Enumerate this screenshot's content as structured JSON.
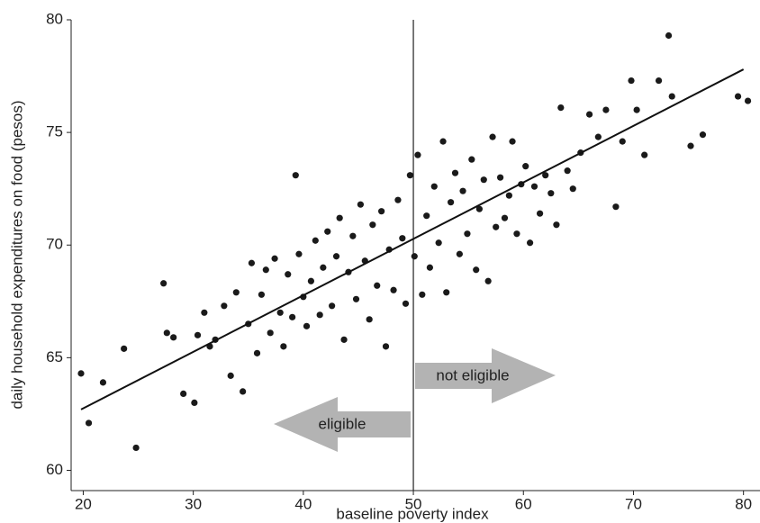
{
  "chart_data": {
    "type": "scatter",
    "x_label": "baseline poverty index",
    "y_label": "daily household expenditures on food (pesos)",
    "annotations": [
      "not eligible",
      "eligible"
    ],
    "threshold": 50,
    "fit_line": {
      "x": [
        19.8,
        80
      ],
      "y": [
        62.7,
        77.8
      ]
    },
    "color": "#1a1a1a",
    "x": [
      19.8,
      20.5,
      21.8,
      23.7,
      24.8,
      27.3,
      27.6,
      28.2,
      29.1,
      30.1,
      30.4,
      31.0,
      31.5,
      32.0,
      32.8,
      33.4,
      33.9,
      34.5,
      35.0,
      35.3,
      35.8,
      36.2,
      36.6,
      37.0,
      37.4,
      37.9,
      38.2,
      38.6,
      39.0,
      39.3,
      39.6,
      40.0,
      40.3,
      40.7,
      41.1,
      41.5,
      41.8,
      42.2,
      42.6,
      43.0,
      43.3,
      43.7,
      44.1,
      44.5,
      44.8,
      45.2,
      45.6,
      46.0,
      46.3,
      46.7,
      47.1,
      47.5,
      47.8,
      48.2,
      48.6,
      49.0,
      49.3,
      49.7,
      50.1,
      50.4,
      50.8,
      51.2,
      51.5,
      51.9,
      52.3,
      52.7,
      53.0,
      53.4,
      53.8,
      54.2,
      54.5,
      54.9,
      55.3,
      55.7,
      56.0,
      56.4,
      56.8,
      57.2,
      57.5,
      57.9,
      58.3,
      58.7,
      59.0,
      59.4,
      59.8,
      60.2,
      60.6,
      61.0,
      61.5,
      62.0,
      62.5,
      63.0,
      63.4,
      64.0,
      64.5,
      65.2,
      66.0,
      66.8,
      67.5,
      68.4,
      69.0,
      69.8,
      70.3,
      71.0,
      72.3,
      73.2,
      73.5,
      75.2,
      76.3,
      79.5,
      80.4
    ],
    "values": [
      64.3,
      62.1,
      63.9,
      65.4,
      61.0,
      68.3,
      66.1,
      65.9,
      63.4,
      63.0,
      66.0,
      67.0,
      65.5,
      65.8,
      67.3,
      64.2,
      67.9,
      63.5,
      66.5,
      69.2,
      65.2,
      67.8,
      68.9,
      66.1,
      69.4,
      67.0,
      65.5,
      68.7,
      66.8,
      73.1,
      69.6,
      67.7,
      66.4,
      68.4,
      70.2,
      66.9,
      69.0,
      70.6,
      67.3,
      69.5,
      71.2,
      65.8,
      68.8,
      70.4,
      67.6,
      71.8,
      69.3,
      66.7,
      70.9,
      68.2,
      71.5,
      65.5,
      69.8,
      68.0,
      72.0,
      70.3,
      67.4,
      73.1,
      69.5,
      74.0,
      67.8,
      71.3,
      69.0,
      72.6,
      70.1,
      74.6,
      67.9,
      71.9,
      73.2,
      69.6,
      72.4,
      70.5,
      73.8,
      68.9,
      71.6,
      72.9,
      68.4,
      74.8,
      70.8,
      73.0,
      71.2,
      72.2,
      74.6,
      70.5,
      72.7,
      73.5,
      70.1,
      72.6,
      71.4,
      73.1,
      72.3,
      70.9,
      76.1,
      73.3,
      72.5,
      74.1,
      75.8,
      74.8,
      76.0,
      71.7,
      74.6,
      77.3,
      76.0,
      74.0,
      77.3,
      79.3,
      76.6,
      74.4,
      74.9,
      76.6,
      76.4
    ],
    "xlim": [
      18.9,
      81.5
    ],
    "xticks": [
      20,
      30,
      40,
      50,
      60,
      70,
      80
    ],
    "ylim": [
      59.1,
      80
    ],
    "yticks": [
      60,
      65,
      70,
      75,
      80
    ]
  }
}
